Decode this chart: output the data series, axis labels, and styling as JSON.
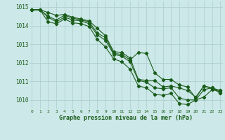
{
  "x": [
    0,
    1,
    2,
    3,
    4,
    5,
    6,
    7,
    8,
    9,
    10,
    11,
    12,
    13,
    14,
    15,
    16,
    17,
    18,
    19,
    20,
    21,
    22,
    23
  ],
  "line1": [
    1014.85,
    1014.85,
    1014.7,
    1014.55,
    1014.6,
    1014.45,
    1014.35,
    1014.25,
    1013.85,
    1013.45,
    1012.6,
    1012.55,
    1012.25,
    1011.1,
    1011.05,
    1011.05,
    1010.7,
    1010.75,
    1010.65,
    1010.5,
    1010.15,
    1010.75,
    1010.6,
    1010.5
  ],
  "line2": [
    1014.85,
    1014.85,
    1014.5,
    1014.3,
    1014.55,
    1014.4,
    1014.3,
    1014.2,
    1013.6,
    1013.35,
    1012.5,
    1012.45,
    1012.15,
    1012.55,
    1012.5,
    1011.45,
    1011.1,
    1011.1,
    1010.8,
    1010.7,
    1010.1,
    1010.75,
    1010.65,
    1010.5
  ],
  "line3": [
    1014.85,
    1014.85,
    1014.45,
    1014.2,
    1014.45,
    1014.3,
    1014.25,
    1014.1,
    1013.5,
    1013.2,
    1012.45,
    1012.35,
    1012.05,
    1011.05,
    1010.95,
    1010.65,
    1010.6,
    1010.65,
    1010.1,
    1010.0,
    1010.0,
    1010.15,
    1010.55,
    1010.45
  ],
  "line4": [
    1014.85,
    1014.85,
    1014.2,
    1014.1,
    1014.35,
    1014.15,
    1014.1,
    1013.95,
    1013.25,
    1012.85,
    1012.2,
    1012.05,
    1011.65,
    1010.75,
    1010.65,
    1010.3,
    1010.25,
    1010.35,
    1009.8,
    1009.75,
    1010.0,
    1010.55,
    1010.65,
    1010.35
  ],
  "bg_color": "#cce8e8",
  "grid_color": "#aacccc",
  "line_color": "#1a5c1a",
  "title": "Graphe pression niveau de la mer (hPa)",
  "ylim_min": 1009.5,
  "ylim_max": 1015.3,
  "yticks": [
    1010,
    1011,
    1012,
    1013,
    1014,
    1015
  ],
  "xticks": [
    0,
    1,
    2,
    3,
    4,
    5,
    6,
    7,
    8,
    9,
    10,
    11,
    12,
    13,
    14,
    15,
    16,
    17,
    18,
    19,
    20,
    21,
    22,
    23
  ],
  "markersize": 2.2,
  "linewidth": 0.8
}
